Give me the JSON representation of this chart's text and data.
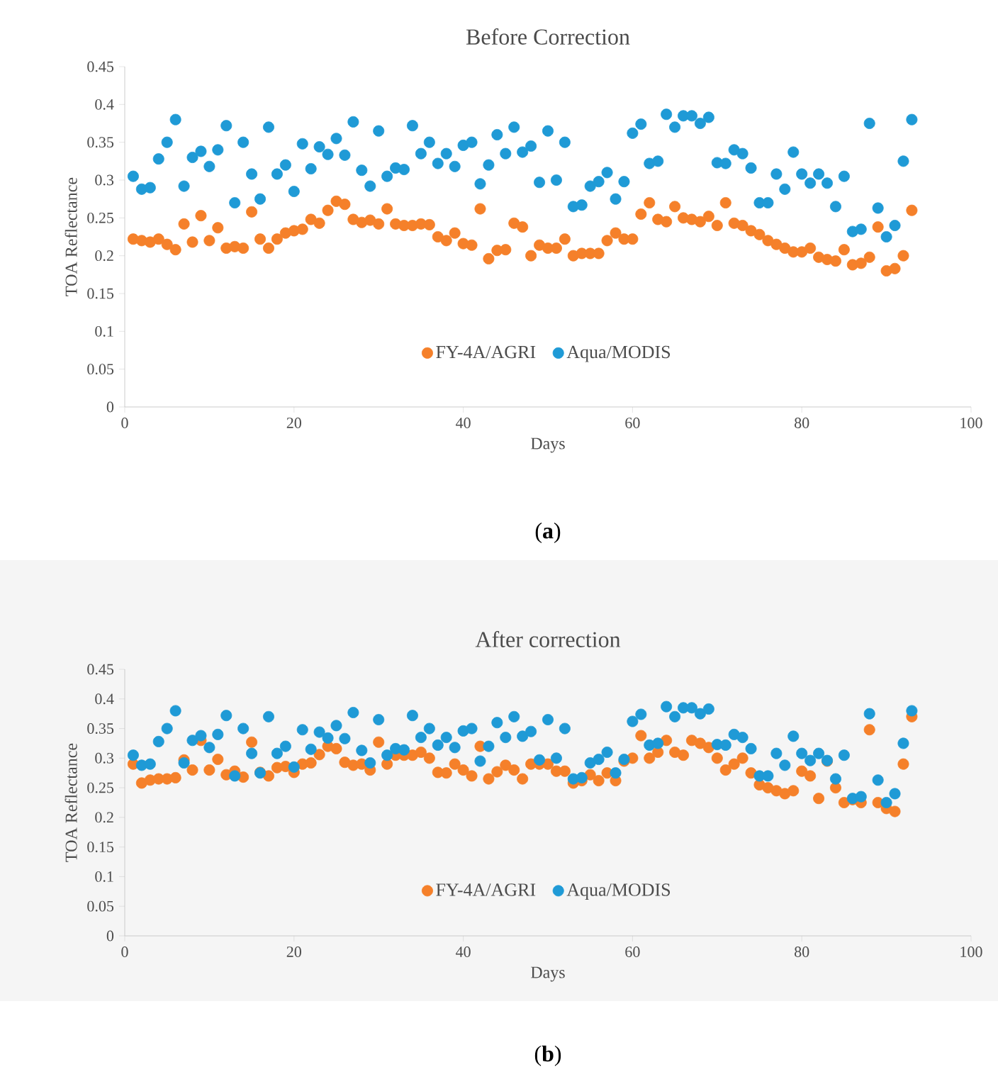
{
  "chart_data": [
    {
      "type": "scatter",
      "title": "Before Correction",
      "xlabel": "Days",
      "ylabel": "TOA Reflectance",
      "xlim": [
        0,
        100
      ],
      "ylim": [
        0,
        0.45
      ],
      "xticks": [
        0,
        20,
        40,
        60,
        80,
        100
      ],
      "yticks": [
        0,
        0.05,
        0.1,
        0.15,
        0.2,
        0.25,
        0.3,
        0.35,
        0.4,
        0.45
      ],
      "marker": "circle",
      "legend": "bottom",
      "annotations": [
        "(**a**)"
      ],
      "x": [
        1,
        2,
        3,
        4,
        5,
        6,
        7,
        8,
        9,
        10,
        11,
        12,
        13,
        14,
        15,
        16,
        17,
        18,
        19,
        20,
        21,
        22,
        23,
        24,
        25,
        26,
        27,
        28,
        29,
        30,
        31,
        32,
        33,
        34,
        35,
        36,
        37,
        38,
        39,
        40,
        41,
        42,
        43,
        44,
        45,
        46,
        47,
        48,
        49,
        50,
        51,
        52,
        53,
        54,
        55,
        56,
        57,
        58,
        59,
        60,
        61,
        62,
        63,
        64,
        65,
        66,
        67,
        68,
        69,
        70,
        71,
        72,
        73,
        74,
        75,
        76,
        77,
        78,
        79,
        80,
        81,
        82,
        83,
        84,
        85,
        86,
        87,
        88,
        89,
        90,
        91,
        92,
        93
      ],
      "series": [
        {
          "name": "FY-4A/AGRI",
          "color": "#f5802a",
          "values": [
            0.222,
            0.22,
            0.218,
            0.222,
            0.215,
            0.208,
            0.242,
            0.218,
            0.253,
            0.22,
            0.237,
            0.21,
            0.212,
            0.21,
            0.258,
            0.222,
            0.21,
            0.222,
            0.23,
            0.233,
            0.235,
            0.248,
            0.243,
            0.26,
            0.272,
            0.268,
            0.248,
            0.244,
            0.247,
            0.242,
            0.262,
            0.242,
            0.24,
            0.24,
            0.242,
            0.241,
            0.225,
            0.22,
            0.23,
            0.216,
            0.214,
            0.262,
            0.196,
            0.207,
            0.208,
            0.243,
            0.238,
            0.2,
            0.214,
            0.21,
            0.21,
            0.222,
            0.2,
            0.203,
            0.203,
            0.203,
            0.22,
            0.23,
            0.222,
            0.222,
            0.255,
            0.27,
            0.248,
            0.245,
            0.265,
            0.25,
            0.248,
            0.245,
            0.252,
            0.24,
            0.27,
            0.243,
            0.24,
            0.233,
            0.228,
            0.22,
            0.215,
            0.21,
            0.205,
            0.205,
            0.21,
            0.198,
            0.195,
            0.193,
            0.208,
            0.188,
            0.19,
            0.198,
            0.238,
            0.18,
            0.183,
            0.2,
            0.26
          ]
        },
        {
          "name": "Aqua/MODIS",
          "color": "#1f9ad6",
          "values": [
            0.305,
            0.288,
            0.29,
            0.328,
            0.35,
            0.38,
            0.292,
            0.33,
            0.338,
            0.318,
            0.34,
            0.372,
            0.27,
            0.35,
            0.308,
            0.275,
            0.37,
            0.308,
            0.32,
            0.285,
            0.348,
            0.315,
            0.344,
            0.334,
            0.355,
            0.333,
            0.377,
            0.313,
            0.292,
            0.365,
            0.305,
            0.316,
            0.314,
            0.372,
            0.335,
            0.35,
            0.322,
            0.335,
            0.318,
            0.346,
            0.35,
            0.295,
            0.32,
            0.36,
            0.335,
            0.37,
            0.337,
            0.345,
            0.297,
            0.365,
            0.3,
            0.35,
            0.265,
            0.267,
            0.292,
            0.298,
            0.31,
            0.275,
            0.298,
            0.362,
            0.374,
            0.322,
            0.325,
            0.387,
            0.37,
            0.385,
            0.385,
            0.375,
            0.383,
            0.323,
            0.322,
            0.34,
            0.335,
            0.316,
            0.27,
            0.27,
            0.308,
            0.288,
            0.337,
            0.308,
            0.296,
            0.308,
            0.296,
            0.265,
            0.305,
            0.232,
            0.235,
            0.375,
            0.263,
            0.225,
            0.24,
            0.325,
            0.38
          ]
        }
      ]
    },
    {
      "type": "scatter",
      "title": "After correction",
      "xlabel": "Days",
      "ylabel": "TOA Reflectance",
      "xlim": [
        0,
        100
      ],
      "ylim": [
        0,
        0.45
      ],
      "xticks": [
        0,
        20,
        40,
        60,
        80,
        100
      ],
      "yticks": [
        0,
        0.05,
        0.1,
        0.15,
        0.2,
        0.25,
        0.3,
        0.35,
        0.4,
        0.45
      ],
      "marker": "circle",
      "legend": "bottom",
      "annotations": [
        "(**b**)"
      ],
      "x": [
        1,
        2,
        3,
        4,
        5,
        6,
        7,
        8,
        9,
        10,
        11,
        12,
        13,
        14,
        15,
        16,
        17,
        18,
        19,
        20,
        21,
        22,
        23,
        24,
        25,
        26,
        27,
        28,
        29,
        30,
        31,
        32,
        33,
        34,
        35,
        36,
        37,
        38,
        39,
        40,
        41,
        42,
        43,
        44,
        45,
        46,
        47,
        48,
        49,
        50,
        51,
        52,
        53,
        54,
        55,
        56,
        57,
        58,
        59,
        60,
        61,
        62,
        63,
        64,
        65,
        66,
        67,
        68,
        69,
        70,
        71,
        72,
        73,
        74,
        75,
        76,
        77,
        78,
        79,
        80,
        81,
        82,
        83,
        84,
        85,
        86,
        87,
        88,
        89,
        90,
        91,
        92,
        93
      ],
      "series": [
        {
          "name": "FY-4A/AGRI",
          "color": "#f5802a",
          "values": [
            0.29,
            0.258,
            0.263,
            0.265,
            0.265,
            0.267,
            0.297,
            0.28,
            0.33,
            0.28,
            0.298,
            0.272,
            0.278,
            0.268,
            0.327,
            0.276,
            0.27,
            0.284,
            0.286,
            0.276,
            0.29,
            0.292,
            0.306,
            0.32,
            0.316,
            0.293,
            0.288,
            0.29,
            0.28,
            0.327,
            0.29,
            0.305,
            0.305,
            0.305,
            0.31,
            0.3,
            0.276,
            0.275,
            0.29,
            0.28,
            0.27,
            0.32,
            0.265,
            0.277,
            0.288,
            0.28,
            0.265,
            0.29,
            0.29,
            0.29,
            0.278,
            0.278,
            0.258,
            0.262,
            0.272,
            0.262,
            0.275,
            0.262,
            0.295,
            0.3,
            0.338,
            0.3,
            0.31,
            0.33,
            0.31,
            0.305,
            0.33,
            0.325,
            0.318,
            0.3,
            0.28,
            0.29,
            0.3,
            0.275,
            0.255,
            0.25,
            0.245,
            0.24,
            0.245,
            0.278,
            0.27,
            0.232,
            0.295,
            0.25,
            0.225,
            0.23,
            0.225,
            0.348,
            0.225,
            0.215,
            0.21,
            0.29,
            0.37
          ]
        },
        {
          "name": "Aqua/MODIS",
          "color": "#1f9ad6",
          "values": [
            0.305,
            0.288,
            0.29,
            0.328,
            0.35,
            0.38,
            0.292,
            0.33,
            0.338,
            0.318,
            0.34,
            0.372,
            0.27,
            0.35,
            0.308,
            0.275,
            0.37,
            0.308,
            0.32,
            0.285,
            0.348,
            0.315,
            0.344,
            0.334,
            0.355,
            0.333,
            0.377,
            0.313,
            0.292,
            0.365,
            0.305,
            0.316,
            0.314,
            0.372,
            0.335,
            0.35,
            0.322,
            0.335,
            0.318,
            0.346,
            0.35,
            0.295,
            0.32,
            0.36,
            0.335,
            0.37,
            0.337,
            0.345,
            0.297,
            0.365,
            0.3,
            0.35,
            0.265,
            0.267,
            0.292,
            0.298,
            0.31,
            0.275,
            0.298,
            0.362,
            0.374,
            0.322,
            0.325,
            0.387,
            0.37,
            0.385,
            0.385,
            0.375,
            0.383,
            0.323,
            0.322,
            0.34,
            0.335,
            0.316,
            0.27,
            0.27,
            0.308,
            0.288,
            0.337,
            0.308,
            0.296,
            0.308,
            0.296,
            0.265,
            0.305,
            0.232,
            0.235,
            0.375,
            0.263,
            0.225,
            0.24,
            0.325,
            0.38
          ]
        }
      ]
    }
  ]
}
